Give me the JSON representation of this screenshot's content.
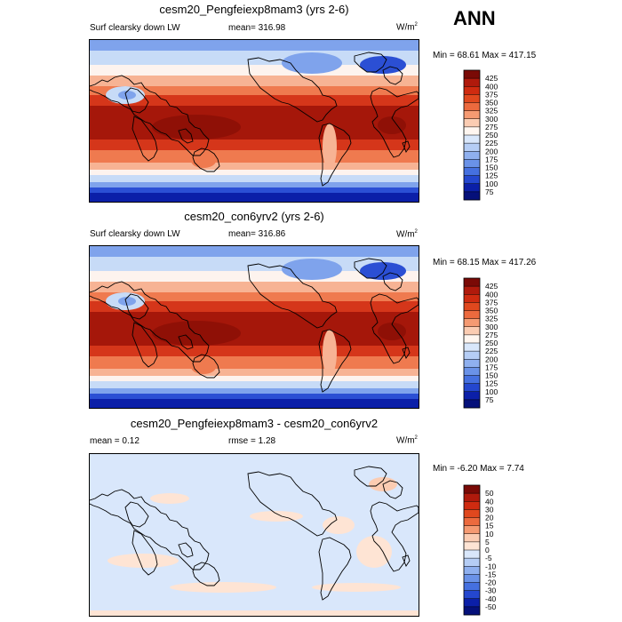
{
  "season": "ANN",
  "panels": [
    {
      "title": "cesm20_Pengfeiexp8mam3 (yrs 2-6)",
      "left_label": "Surf clearsky down LW",
      "center_label": "mean= 316.98",
      "units_base": "W/m",
      "units_exp": "2",
      "minmax": "Min =  68.61 Max = 417.15",
      "field": "absolute"
    },
    {
      "title": "cesm20_con6yrv2 (yrs 2-6)",
      "left_label": "Surf clearsky down LW",
      "center_label": "mean= 316.86",
      "units_base": "W/m",
      "units_exp": "2",
      "minmax": "Min =  68.15 Max = 417.26",
      "field": "absolute"
    },
    {
      "title": "cesm20_Pengfeiexp8mam3 - cesm20_con6yrv2",
      "left_label": "mean =   0.12",
      "center_label": "rmse =   1.28",
      "units_base": "W/m",
      "units_exp": "2",
      "minmax": "Min =  -6.20 Max =   7.74",
      "field": "difference"
    }
  ],
  "chart_data": {
    "type": "heatmap",
    "description_free": true,
    "colorbars": [
      {
        "levels": [
          "425",
          "400",
          "375",
          "350",
          "325",
          "300",
          "275",
          "250",
          "225",
          "200",
          "175",
          "150",
          "125",
          "100",
          "75"
        ],
        "colors": [
          "#7a0a06",
          "#b01a0c",
          "#cf2b10",
          "#e0481e",
          "#ec6a3e",
          "#f59a72",
          "#fbccb2",
          "#fff6f0",
          "#d9e7fb",
          "#b5cdf5",
          "#8fb0ef",
          "#6a92e8",
          "#4570e0",
          "#2447cf",
          "#0b1fa8",
          "#05107a"
        ]
      },
      {
        "levels": [
          "425",
          "400",
          "375",
          "350",
          "325",
          "300",
          "275",
          "250",
          "225",
          "200",
          "175",
          "150",
          "125",
          "100",
          "75"
        ],
        "colors": [
          "#7a0a06",
          "#b01a0c",
          "#cf2b10",
          "#e0481e",
          "#ec6a3e",
          "#f59a72",
          "#fbccb2",
          "#fff6f0",
          "#d9e7fb",
          "#b5cdf5",
          "#8fb0ef",
          "#6a92e8",
          "#4570e0",
          "#2447cf",
          "#0b1fa8",
          "#05107a"
        ]
      },
      {
        "levels": [
          "50",
          "40",
          "30",
          "20",
          "15",
          "10",
          "5",
          "0",
          "-5",
          "-10",
          "-15",
          "-20",
          "-30",
          "-40",
          "-50"
        ],
        "colors": [
          "#7a0a06",
          "#b01a0c",
          "#cf2b10",
          "#e0481e",
          "#ec6a3e",
          "#f59a72",
          "#fbccb2",
          "#fee4d4",
          "#d9e7fb",
          "#b5cdf5",
          "#8fb0ef",
          "#6a92e8",
          "#4570e0",
          "#2447cf",
          "#0b1fa8",
          "#05107a"
        ]
      }
    ],
    "map_colors": {
      "dark_red": "#a5170a",
      "red": "#d5361a",
      "orange": "#ef7a4f",
      "salmon": "#f7b394",
      "white": "#fdf3ee",
      "light_blue": "#c7dbf7",
      "blue": "#7fa3ec",
      "dark_blue": "#2b4fd4",
      "navy": "#0b1fa8",
      "diff_bg": "#d9e7fb",
      "diff_pos": "#fee4d4",
      "diff_pos2": "#fbccb2"
    }
  }
}
